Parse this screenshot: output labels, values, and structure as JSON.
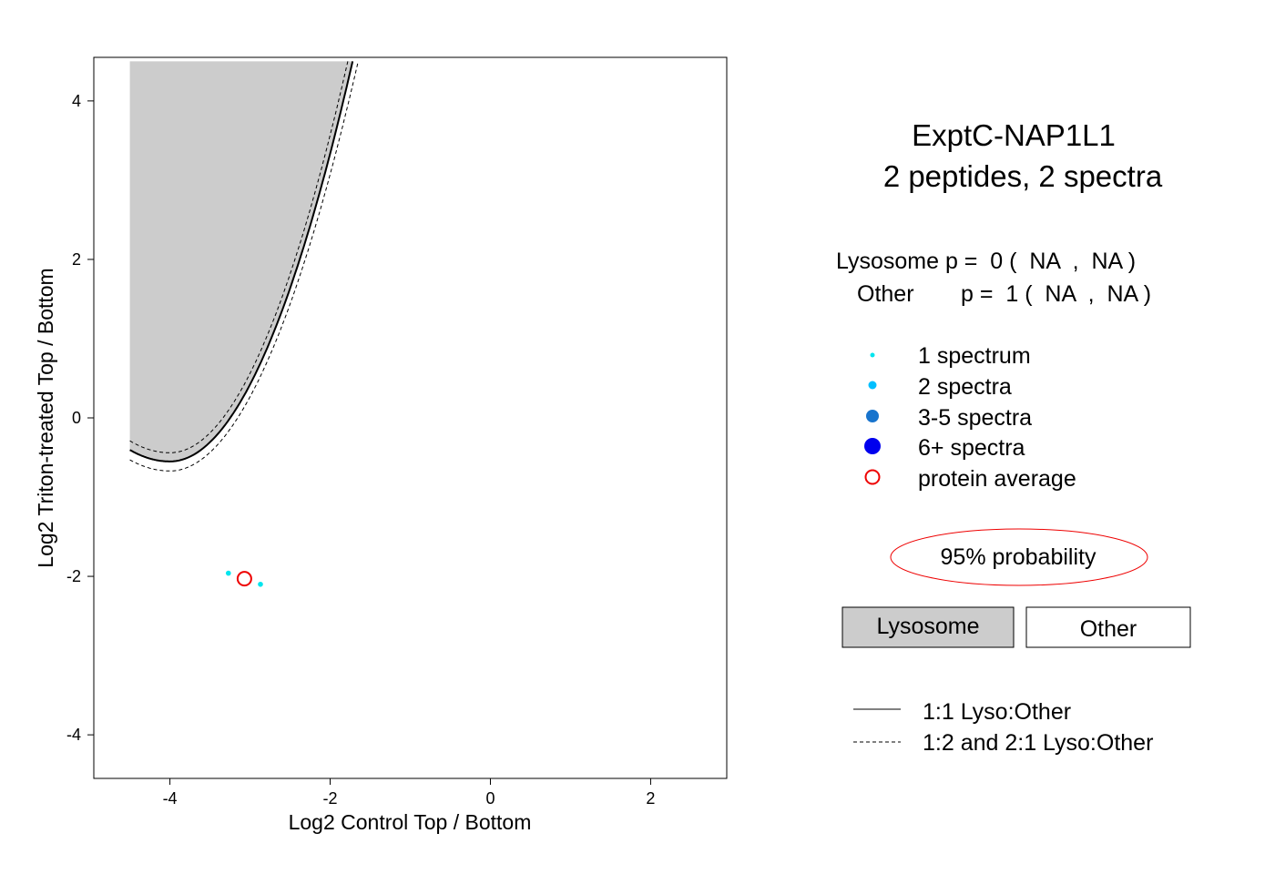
{
  "chart_data": {
    "type": "scatter",
    "xlabel": "Log2 Control Top / Bottom",
    "ylabel": "Log2 Triton-treated Top / Bottom",
    "xlim": [
      -4.95,
      2.95
    ],
    "ylim": [
      -4.55,
      4.55
    ],
    "x_ticks": [
      -4,
      -2,
      0,
      2
    ],
    "y_ticks": [
      -4,
      -2,
      0,
      2,
      4
    ],
    "x_tick_labels": [
      "-4",
      "-2",
      "0",
      "2"
    ],
    "y_tick_labels": [
      "-4",
      "-2",
      "0",
      "2",
      "4"
    ],
    "grid": false,
    "points": [
      {
        "x": -3.27,
        "y": -1.96,
        "spectra": 1
      },
      {
        "x": -2.87,
        "y": -2.1,
        "spectra": 1
      }
    ],
    "protein_average": {
      "x": -3.07,
      "y": -2.03
    },
    "boundary_1to1": {
      "apex_x": -4.0,
      "apex_y": -0.55,
      "top_x": -1.72,
      "top_y": 4.5,
      "left_x": -4.5
    },
    "boundary_dashed_outer": {
      "apex_x": -4.0,
      "apex_y": -0.67,
      "top_x": -1.65,
      "top_y": 4.5,
      "left_x": -4.5
    },
    "boundary_dashed_inner": {
      "apex_x": -4.0,
      "apex_y": -0.44,
      "top_x": -1.78,
      "top_y": 4.5,
      "left_x": -4.5
    },
    "colors": {
      "lysosome_region": "#cccccc",
      "one_spectrum": "#00e5ee",
      "two_spectra": "#00bfff",
      "three_five_spectra": "#1874cd",
      "six_plus_spectra": "#0000ee",
      "protein_average": "#ee0000"
    }
  },
  "side": {
    "title_line1": "ExptC-NAP1L1",
    "title_line2": "2  peptides,  2  spectra",
    "lyso_line": "Lysosome p =  0 (  NA  ,  NA )",
    "other_line_name": "Other",
    "other_line_rest": "p =  1 (  NA  ,  NA )",
    "legend": [
      "1 spectrum",
      "2 spectra",
      "3-5 spectra",
      "6+ spectra",
      "protein average"
    ],
    "probability_label": "95% probability",
    "lysosome_box": "Lysosome",
    "other_box": "Other",
    "line_legend_solid": "1:1 Lyso:Other",
    "line_legend_dashed": "1:2 and 2:1 Lyso:Other"
  }
}
